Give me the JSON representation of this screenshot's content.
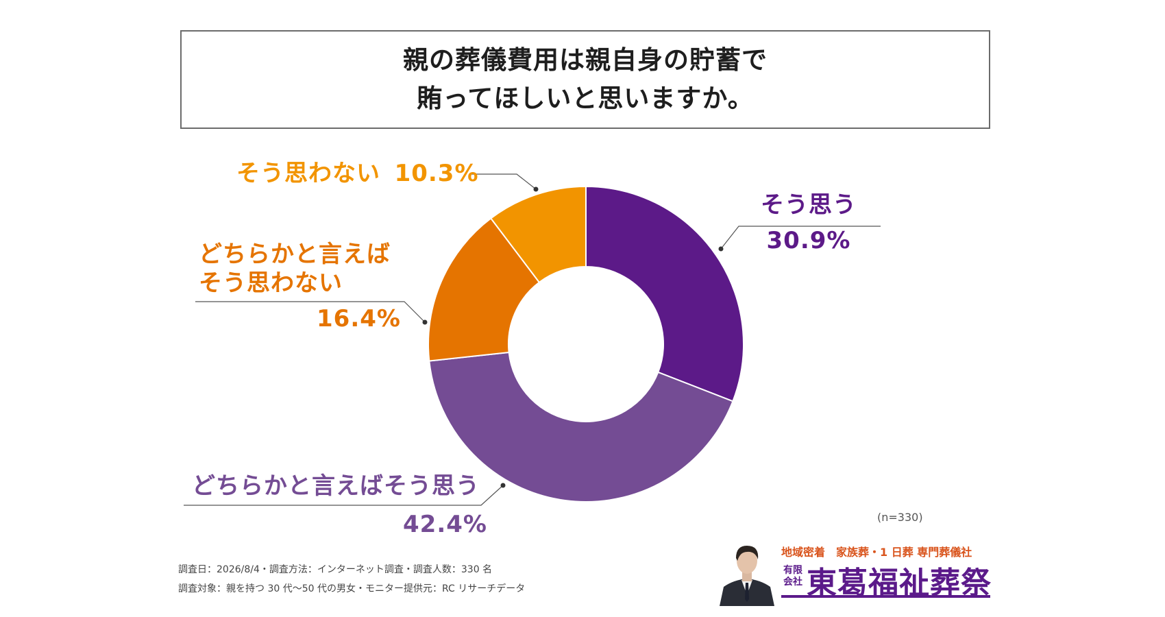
{
  "title": {
    "line1": "親の葬儀費用は親自身の貯蓄で",
    "line2": "賄ってほしいと思いますか。"
  },
  "chart_data": {
    "type": "pie",
    "donut": true,
    "slices": [
      {
        "label": "そう思う",
        "value": 30.9,
        "display": "30.9%",
        "color": "#5c1a88"
      },
      {
        "label": "どちらかと言えばそう思う",
        "value": 42.4,
        "display": "42.4%",
        "color": "#744c94"
      },
      {
        "label": "どちらかと言えば\nそう思わない",
        "label_lines": [
          "どちらかと言えば",
          "そう思わない"
        ],
        "value": 16.4,
        "display": "16.4%",
        "color": "#e57400"
      },
      {
        "label": "そう思わない",
        "value": 10.3,
        "display": "10.3%",
        "color": "#f29400"
      }
    ]
  },
  "labels": {
    "s0_name": "そう思う",
    "s0_pct": "30.9%",
    "s1_name": "どちらかと言えばそう思う",
    "s1_pct": "42.4%",
    "s2_name_line1": "どちらかと言えば",
    "s2_name_line2": "そう思わない",
    "s2_pct": "16.4%",
    "s3_name": "そう思わない",
    "s3_pct": "10.3%"
  },
  "sample_note": "(n=330)",
  "footer": {
    "line1": "調査日：2026/8/4・調査方法：インターネット調査・調査人数：330 名",
    "line2": "調査対象：親を持つ 30 代〜50 代の男女・モニター提供元：RC リサーチデータ"
  },
  "brand": {
    "tagline": "地域密着　家族葬・1 日葬 専門葬儀社",
    "company_type": "有限会社",
    "company_name": "東葛福祉葬祭"
  }
}
